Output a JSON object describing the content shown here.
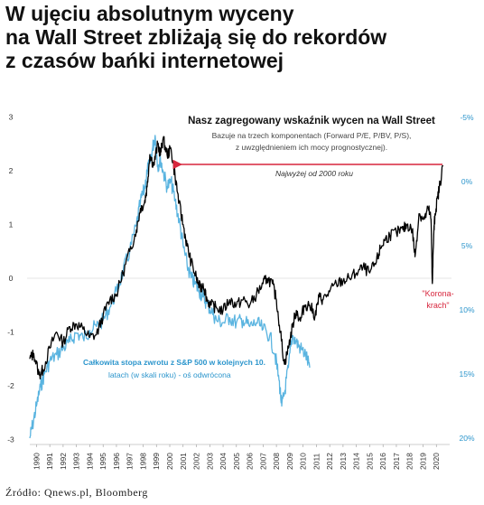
{
  "headline": {
    "line1": "W ujęciu absolutnym wyceny",
    "line2": "na Wall Street zbliżają się do rekordów",
    "line3": "z czasów bańki internetowej"
  },
  "source": "Źródło: Qnews.pl, Bloomberg",
  "colors": {
    "black_series": "#000000",
    "blue_series": "#5ab4e0",
    "arrow": "#d7263d",
    "right_axis": "#2b95cc"
  },
  "chart_data": {
    "type": "line",
    "x_ticks": [
      "1990",
      "1991",
      "1992",
      "1993",
      "1994",
      "1995",
      "1996",
      "1997",
      "1998",
      "1999",
      "2000",
      "2001",
      "2002",
      "2003",
      "2004",
      "2005",
      "2006",
      "2007",
      "2008",
      "2009",
      "2010",
      "2011",
      "2012",
      "2013",
      "2014",
      "2015",
      "2016",
      "2017",
      "2018",
      "2019",
      "2020"
    ],
    "xlim": [
      1990,
      2021.5
    ],
    "y_left": {
      "ticks": [
        "3",
        "2",
        "1",
        "0",
        "-1",
        "-2",
        "-3"
      ],
      "values": [
        3,
        2,
        1,
        0,
        -1,
        -2,
        -3
      ],
      "ylim": [
        -3,
        3
      ]
    },
    "y_right": {
      "ticks": [
        "-5%",
        "0%",
        "5%",
        "10%",
        "15%",
        "20%"
      ],
      "values": [
        -5,
        0,
        5,
        10,
        15,
        20
      ],
      "inverted": true
    },
    "series": [
      {
        "axis": "left",
        "x": [
          1990.0,
          1990.3,
          1990.7,
          1991.0,
          1991.5,
          1992.0,
          1992.5,
          1993.0,
          1993.5,
          1994.0,
          1994.5,
          1995.0,
          1995.5,
          1996.0,
          1996.5,
          1997.0,
          1997.5,
          1998.0,
          1998.3,
          1998.6,
          1998.8,
          1999.0,
          1999.3,
          1999.6,
          1999.8,
          2000.0,
          2000.3,
          2000.6,
          2000.9,
          2001.2,
          2001.5,
          2001.8,
          2002.1,
          2002.5,
          2002.8,
          2003.0,
          2003.3,
          2003.6,
          2004.0,
          2004.5,
          2005.0,
          2005.5,
          2006.0,
          2006.5,
          2007.0,
          2007.5,
          2007.8,
          2008.2,
          2008.5,
          2008.8,
          2009.1,
          2009.4,
          2009.7,
          2010.0,
          2010.3,
          2010.6,
          2011.0,
          2011.4,
          2011.7,
          2012.0,
          2012.5,
          2013.0,
          2013.5,
          2014.0,
          2014.5,
          2015.0,
          2015.5,
          2016.0,
          2016.3,
          2016.6,
          2017.0,
          2017.5,
          2018.0,
          2018.3,
          2018.7,
          2018.9,
          2019.2,
          2019.6,
          2019.9,
          2020.1,
          2020.2,
          2020.3,
          2020.4,
          2020.6,
          2020.8,
          2021.0
        ],
        "y": [
          -1.5,
          -1.4,
          -1.8,
          -1.7,
          -1.3,
          -1.0,
          -1.2,
          -0.9,
          -0.85,
          -0.95,
          -1.1,
          -1.05,
          -0.7,
          -0.4,
          -0.3,
          0.1,
          0.5,
          0.9,
          1.3,
          1.4,
          1.7,
          2.3,
          2.1,
          2.5,
          2.3,
          2.6,
          2.3,
          2.4,
          1.9,
          1.4,
          1.0,
          0.6,
          0.3,
          0.0,
          -0.2,
          -0.1,
          -0.4,
          -0.5,
          -0.55,
          -0.6,
          -0.4,
          -0.5,
          -0.4,
          -0.5,
          -0.3,
          -0.1,
          0.0,
          -0.1,
          -0.4,
          -1.0,
          -1.6,
          -1.3,
          -0.9,
          -0.6,
          -0.8,
          -0.5,
          -0.5,
          -0.7,
          -0.35,
          -0.4,
          -0.25,
          -0.1,
          -0.05,
          0.0,
          0.1,
          0.2,
          0.1,
          0.3,
          0.55,
          0.7,
          0.8,
          0.85,
          0.9,
          1.0,
          0.9,
          0.4,
          1.2,
          1.1,
          1.3,
          1.1,
          -0.1,
          0.8,
          1.2,
          1.5,
          1.8,
          2.1
        ]
      },
      {
        "axis": "right",
        "name": "Całkowita stopa zwrotu z S&P 500 w kolejnych 10. latach (w skali roku) - oś odwrócona",
        "x": [
          1990.0,
          1990.2,
          1990.5,
          1990.8,
          1991.1,
          1991.5,
          1992.0,
          1992.5,
          1993.0,
          1993.5,
          1994.0,
          1994.5,
          1995.0,
          1995.5,
          1996.0,
          1996.5,
          1997.0,
          1997.5,
          1998.0,
          1998.3,
          1998.6,
          1998.8,
          1999.0,
          1999.2,
          1999.4,
          1999.6,
          1999.8,
          2000.0,
          2000.3,
          2000.6,
          2000.9,
          2001.2,
          2001.5,
          2001.8,
          2002.1,
          2002.4,
          2002.7,
          2003.0,
          2003.3,
          2003.7,
          2004.0,
          2004.5,
          2005.0,
          2005.5,
          2006.0,
          2006.5,
          2007.0,
          2007.5,
          2008.0,
          2008.4,
          2008.7,
          2008.9,
          2009.1,
          2009.4,
          2009.7,
          2010.0,
          2010.3,
          2010.7,
          2011.0
        ],
        "y": [
          20.0,
          19.0,
          17.5,
          16.0,
          15.0,
          14.0,
          13.5,
          13.0,
          12.5,
          11.8,
          12.2,
          11.6,
          11.3,
          10.8,
          9.8,
          8.6,
          7.0,
          5.4,
          3.4,
          1.6,
          0.6,
          -0.8,
          -1.4,
          -2.5,
          -3.6,
          -1.2,
          -1.8,
          -0.8,
          0.4,
          0.0,
          1.5,
          3.0,
          5.0,
          6.5,
          7.5,
          8.0,
          8.5,
          9.0,
          9.5,
          10.2,
          10.8,
          11.0,
          10.6,
          11.0,
          10.8,
          11.3,
          11.0,
          11.5,
          12.0,
          13.5,
          15.5,
          17.5,
          16.5,
          14.5,
          12.0,
          12.5,
          13.0,
          13.5,
          14.5
        ]
      }
    ],
    "annotations": {
      "title": "Nasz zagregowany wskaźnik wycen na Wall Street",
      "subtitle1": "Bazuje na trzech komponentach (Forward P/E, P/BV, P/S),",
      "subtitle2": "z uwzględnieniem ich mocy prognostycznej).",
      "arrow_label": "Najwyżej  od 2000 roku",
      "blue_label1": "Całkowita stopa zwrotu z S&P 500 w kolejnych 10.",
      "blue_label2": "latach (w skali roku) - oś odwrócona",
      "korona1": "\"Korona-",
      "korona2": "krach\""
    }
  }
}
